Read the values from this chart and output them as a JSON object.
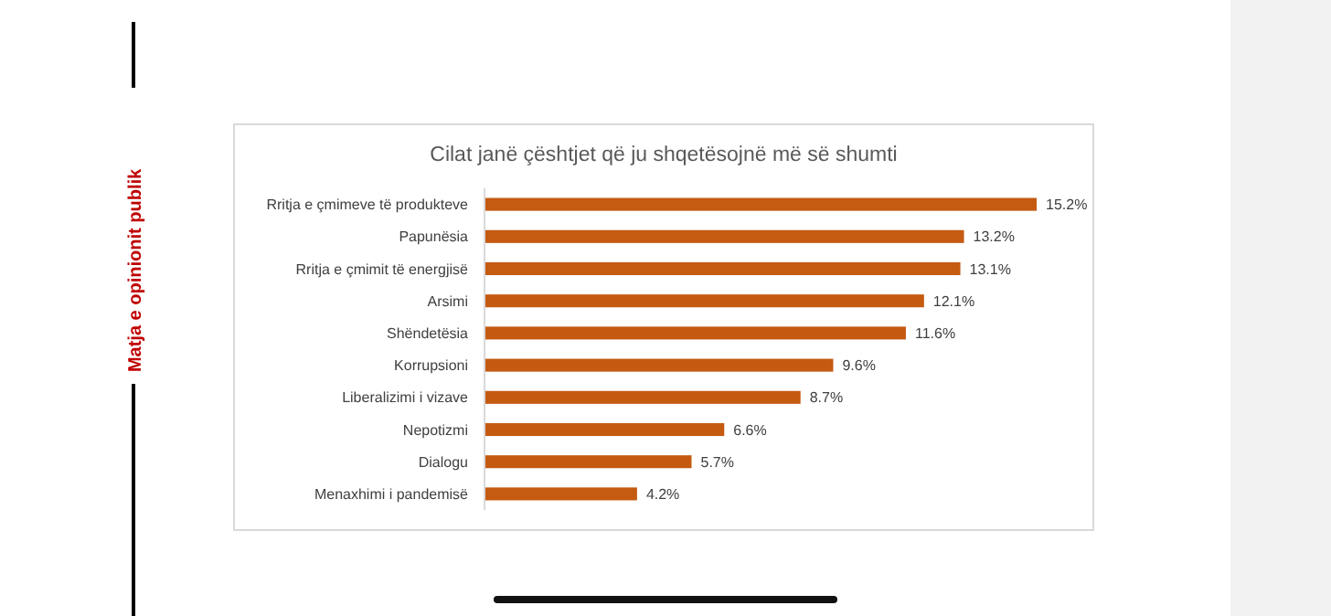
{
  "chart_data": {
    "type": "bar",
    "orientation": "horizontal",
    "title": "Cilat janë çështjet që ju shqetësojnë më së shumti",
    "categories": [
      "Rritja e çmimeve të produkteve",
      "Papunësia",
      "Rritja e çmimit të energjisë",
      "Arsimi",
      "Shëndetësia",
      "Korrupsioni",
      "Liberalizimi i vizave",
      "Nepotizmi",
      "Dialogu",
      "Menaxhimi i pandemisë"
    ],
    "values": [
      15.2,
      13.2,
      13.1,
      12.1,
      11.6,
      9.6,
      8.7,
      6.6,
      5.7,
      4.2
    ],
    "value_labels": [
      "15.2%",
      "13.2%",
      "13.1%",
      "12.1%",
      "11.6%",
      "9.6%",
      "8.7%",
      "6.6%",
      "5.7%",
      "4.2%"
    ],
    "color": "#c55a11",
    "tick_labels": "y",
    "annotations": [
      "Matja e opinionit publik"
    ]
  }
}
